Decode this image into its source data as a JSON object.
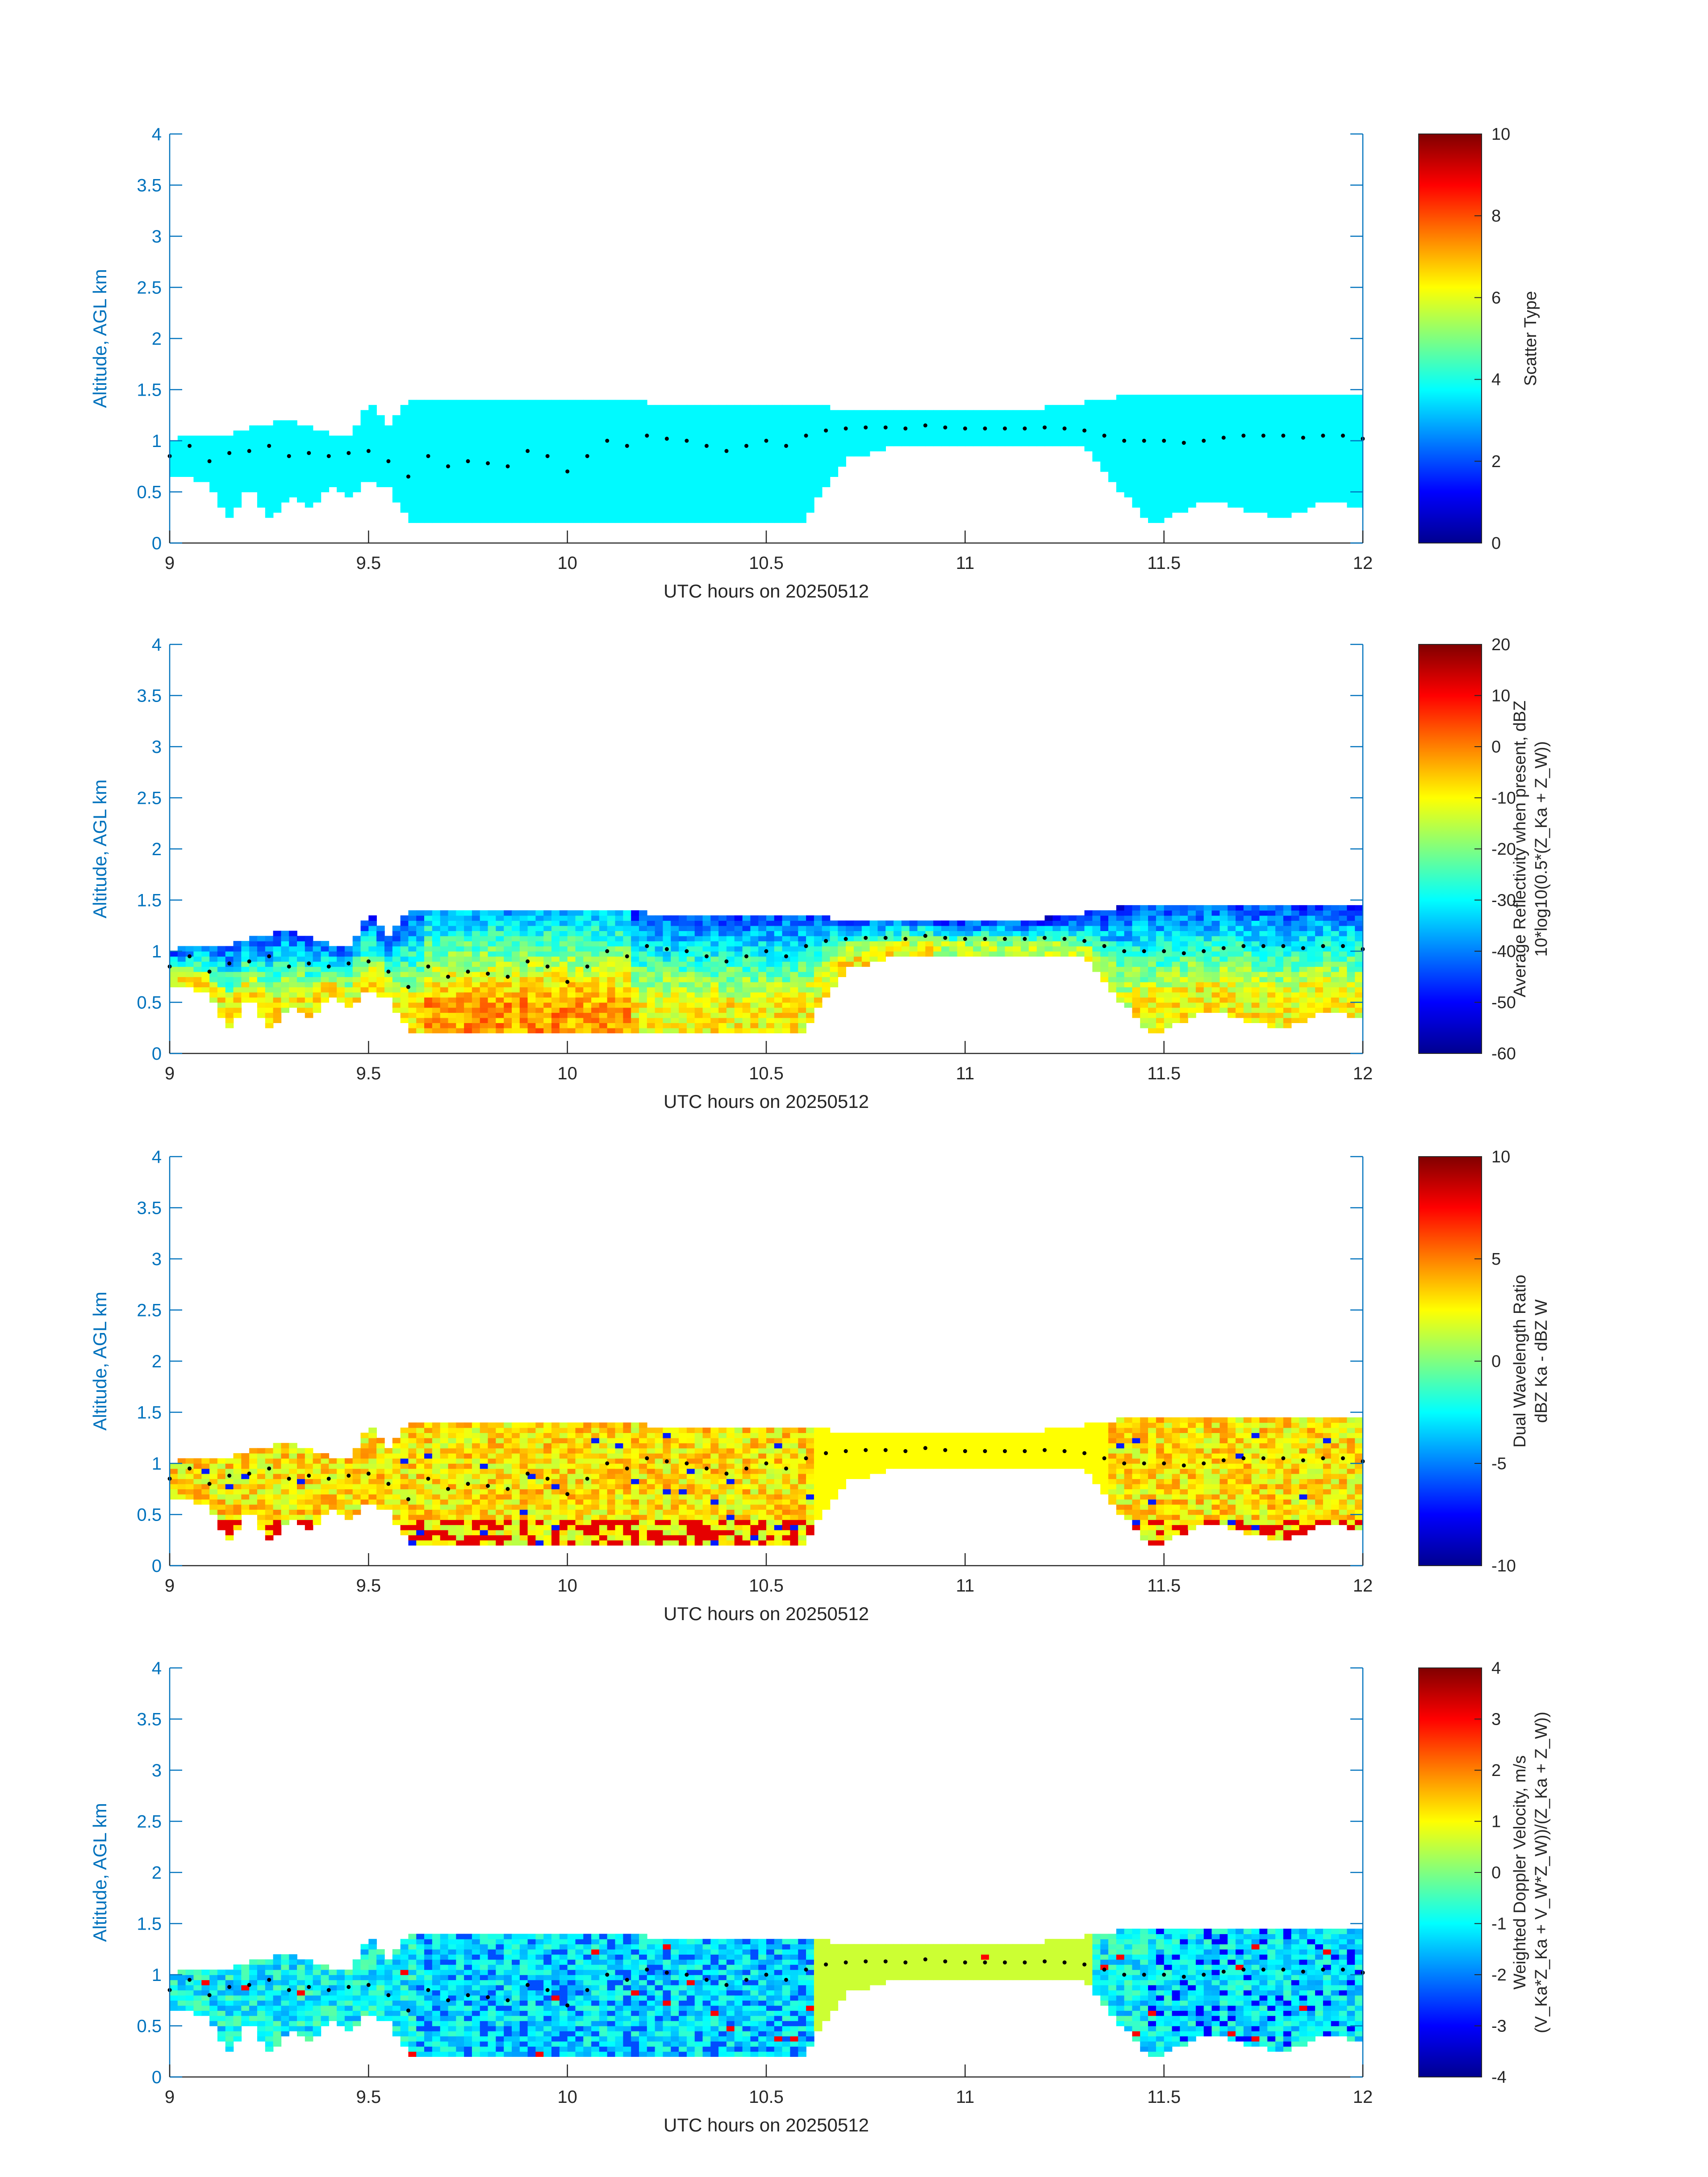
{
  "chart_data": [
    {
      "type": "heatmap",
      "xlabel": "UTC hours on 20250512",
      "ylabel": "Altitude, AGL km",
      "xlim": [
        9,
        12
      ],
      "ylim": [
        0,
        4
      ],
      "xticks": [
        "9",
        "9.5",
        "10",
        "10.5",
        "11",
        "11.5",
        "12"
      ],
      "yticks": [
        "0",
        "0.5",
        "1",
        "1.5",
        "2",
        "2.5",
        "3",
        "3.5",
        "4"
      ],
      "colorbar": {
        "label_lines": [
          "Scatter Type"
        ],
        "range": [
          0,
          10
        ],
        "ticks": [
          "0",
          "2",
          "4",
          "6",
          "8",
          "10"
        ]
      },
      "colormap": "jet",
      "field": "scatter_type"
    },
    {
      "type": "heatmap",
      "xlabel": "UTC hours on 20250512",
      "ylabel": "Altitude, AGL km",
      "xlim": [
        9,
        12
      ],
      "ylim": [
        0,
        4
      ],
      "xticks": [
        "9",
        "9.5",
        "10",
        "10.5",
        "11",
        "11.5",
        "12"
      ],
      "yticks": [
        "0",
        "0.5",
        "1",
        "1.5",
        "2",
        "2.5",
        "3",
        "3.5",
        "4"
      ],
      "colorbar": {
        "label_lines": [
          "Average Reflectivity when present, dBZ",
          "10*log10(0.5*(Z_Ka + Z_W))"
        ],
        "range": [
          -60,
          20
        ],
        "ticks": [
          "-60",
          "-50",
          "-40",
          "-30",
          "-20",
          "-10",
          "0",
          "10",
          "20"
        ]
      },
      "colormap": "jet",
      "field": "reflectivity"
    },
    {
      "type": "heatmap",
      "xlabel": "UTC hours on 20250512",
      "ylabel": "Altitude, AGL km",
      "xlim": [
        9,
        12
      ],
      "ylim": [
        0,
        4
      ],
      "xticks": [
        "9",
        "9.5",
        "10",
        "10.5",
        "11",
        "11.5",
        "12"
      ],
      "yticks": [
        "0",
        "0.5",
        "1",
        "1.5",
        "2",
        "2.5",
        "3",
        "3.5",
        "4"
      ],
      "colorbar": {
        "label_lines": [
          "Dual Wavelength Ratio",
          "dBZ Ka - dBZ W"
        ],
        "range": [
          -10,
          10
        ],
        "ticks": [
          "-10",
          "-5",
          "0",
          "5",
          "10"
        ]
      },
      "colormap": "jet",
      "field": "dwr"
    },
    {
      "type": "heatmap",
      "xlabel": "UTC hours on 20250512",
      "ylabel": "Altitude, AGL km",
      "xlim": [
        9,
        12
      ],
      "ylim": [
        0,
        4
      ],
      "xticks": [
        "9",
        "9.5",
        "10",
        "10.5",
        "11",
        "11.5",
        "12"
      ],
      "yticks": [
        "0",
        "0.5",
        "1",
        "1.5",
        "2",
        "2.5",
        "3",
        "3.5",
        "4"
      ],
      "colorbar": {
        "label_lines": [
          "Weighted Doppler Velocity, m/s",
          "(V_Ka*Z_Ka + V_W*Z_W))/(Z_Ka + Z_W))"
        ],
        "range": [
          -4,
          4
        ],
        "ticks": [
          "-4",
          "-3",
          "-2",
          "-1",
          "0",
          "1",
          "2",
          "3",
          "4"
        ]
      },
      "colormap": "jet",
      "field": "doppler_velocity"
    }
  ],
  "cloud_envelope": {
    "x": [
      9.0,
      9.05,
      9.1,
      9.15,
      9.2,
      9.25,
      9.3,
      9.35,
      9.4,
      9.45,
      9.5,
      9.55,
      9.6,
      9.7,
      9.8,
      9.9,
      10.0,
      10.1,
      10.2,
      10.3,
      10.4,
      10.5,
      10.6,
      10.65,
      10.7,
      10.8,
      10.9,
      11.0,
      11.1,
      11.2,
      11.3,
      11.4,
      11.45,
      11.5,
      11.6,
      11.7,
      11.8,
      11.9,
      12.0
    ],
    "top": [
      0.95,
      1.05,
      1.05,
      1.05,
      1.1,
      1.15,
      1.2,
      1.1,
      1.05,
      1.0,
      1.35,
      1.1,
      1.38,
      1.38,
      1.38,
      1.38,
      1.38,
      1.38,
      1.35,
      1.35,
      1.35,
      1.35,
      1.35,
      1.3,
      1.3,
      1.3,
      1.3,
      1.3,
      1.3,
      1.3,
      1.35,
      1.42,
      1.45,
      1.45,
      1.45,
      1.45,
      1.42,
      1.42,
      1.42
    ],
    "base": [
      0.65,
      0.6,
      0.55,
      0.2,
      0.55,
      0.2,
      0.45,
      0.3,
      0.55,
      0.4,
      0.6,
      0.5,
      0.2,
      0.2,
      0.2,
      0.2,
      0.2,
      0.2,
      0.2,
      0.2,
      0.2,
      0.2,
      0.2,
      0.55,
      0.8,
      0.9,
      0.95,
      0.95,
      0.95,
      0.95,
      0.9,
      0.45,
      0.2,
      0.2,
      0.4,
      0.3,
      0.2,
      0.4,
      0.3
    ]
  },
  "cloud_base_dots": {
    "x": [
      9.0,
      9.05,
      9.1,
      9.15,
      9.2,
      9.25,
      9.3,
      9.35,
      9.4,
      9.45,
      9.5,
      9.55,
      9.6,
      9.65,
      9.7,
      9.75,
      9.8,
      9.85,
      9.9,
      9.95,
      10.0,
      10.05,
      10.1,
      10.15,
      10.2,
      10.25,
      10.3,
      10.35,
      10.4,
      10.45,
      10.5,
      10.55,
      10.6,
      10.65,
      10.7,
      10.75,
      10.8,
      10.85,
      10.9,
      10.95,
      11.0,
      11.05,
      11.1,
      11.15,
      11.2,
      11.25,
      11.3,
      11.35,
      11.4,
      11.45,
      11.5,
      11.55,
      11.6,
      11.65,
      11.7,
      11.75,
      11.8,
      11.85,
      11.9,
      11.95,
      12.0
    ],
    "y": [
      0.85,
      0.95,
      0.8,
      0.88,
      0.9,
      0.95,
      0.85,
      0.88,
      0.85,
      0.88,
      0.9,
      0.8,
      0.65,
      0.85,
      0.75,
      0.8,
      0.78,
      0.75,
      0.9,
      0.85,
      0.7,
      0.85,
      1.0,
      0.95,
      1.05,
      1.02,
      1.0,
      0.95,
      0.9,
      0.95,
      1.0,
      0.95,
      1.05,
      1.1,
      1.12,
      1.13,
      1.13,
      1.12,
      1.15,
      1.13,
      1.12,
      1.12,
      1.12,
      1.12,
      1.13,
      1.12,
      1.1,
      1.05,
      1.0,
      1.0,
      1.0,
      0.98,
      1.0,
      1.03,
      1.05,
      1.05,
      1.05,
      1.03,
      1.05,
      1.05,
      1.02
    ]
  }
}
